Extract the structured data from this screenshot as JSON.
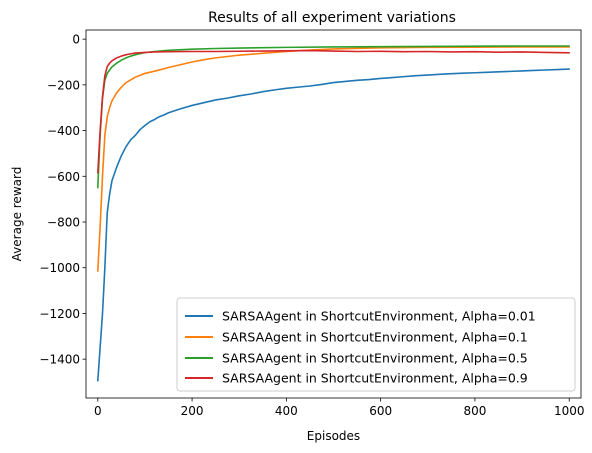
{
  "chart_data": {
    "type": "line",
    "title": "Results of all experiment variations",
    "xlabel": "Episodes",
    "ylabel": "Average reward",
    "xlim": [
      -25,
      1025
    ],
    "ylim": [
      -1570,
      40
    ],
    "xticks": [
      0,
      200,
      400,
      600,
      800,
      1000
    ],
    "yticks": [
      0,
      -200,
      -400,
      -600,
      -800,
      -1000,
      -1200,
      -1400
    ],
    "xtick_labels": [
      "0",
      "200",
      "400",
      "600",
      "800",
      "1000"
    ],
    "ytick_labels": [
      "0",
      "−200",
      "−400",
      "−600",
      "−800",
      "−1000",
      "−1200",
      "−1400"
    ],
    "grid": false,
    "legend_position": "lower right",
    "series": [
      {
        "name": "SARSAAgent in ShortcutEnvironment, Alpha=0.01",
        "color": "#1f77b4",
        "x": [
          0,
          10,
          15,
          20,
          25,
          30,
          40,
          50,
          60,
          70,
          80,
          90,
          100,
          110,
          120,
          130,
          140,
          150,
          175,
          200,
          225,
          250,
          275,
          300,
          325,
          350,
          375,
          400,
          425,
          450,
          475,
          500,
          525,
          550,
          575,
          600,
          625,
          650,
          675,
          700,
          725,
          750,
          775,
          800,
          825,
          850,
          875,
          900,
          925,
          950,
          975,
          1000
        ],
        "y": [
          -1495,
          -1200,
          -1000,
          -760,
          -680,
          -620,
          -560,
          -510,
          -470,
          -440,
          -420,
          -395,
          -378,
          -362,
          -352,
          -340,
          -332,
          -322,
          -305,
          -290,
          -278,
          -266,
          -258,
          -248,
          -240,
          -230,
          -222,
          -215,
          -210,
          -205,
          -198,
          -190,
          -185,
          -180,
          -177,
          -172,
          -168,
          -164,
          -160,
          -157,
          -154,
          -151,
          -149,
          -147,
          -145,
          -143,
          -141,
          -139,
          -137,
          -135,
          -133,
          -131
        ]
      },
      {
        "name": "SARSAAgent in ShortcutEnvironment, Alpha=0.1",
        "color": "#ff7f0e",
        "x": [
          0,
          5,
          10,
          15,
          20,
          25,
          30,
          40,
          50,
          60,
          70,
          80,
          90,
          100,
          125,
          150,
          175,
          200,
          225,
          250,
          275,
          300,
          350,
          400,
          450,
          500,
          600,
          700,
          800,
          900,
          1000
        ],
        "y": [
          -1015,
          -820,
          -600,
          -420,
          -340,
          -300,
          -270,
          -235,
          -210,
          -190,
          -178,
          -166,
          -158,
          -150,
          -138,
          -124,
          -112,
          -100,
          -90,
          -82,
          -76,
          -70,
          -62,
          -54,
          -48,
          -43,
          -38,
          -36,
          -35,
          -34,
          -34
        ]
      },
      {
        "name": "SARSAAgent in ShortcutEnvironment, Alpha=0.5",
        "color": "#2ca02c",
        "x": [
          0,
          5,
          10,
          15,
          20,
          25,
          30,
          40,
          50,
          60,
          70,
          80,
          90,
          100,
          120,
          150,
          200,
          250,
          300,
          400,
          500,
          600,
          700,
          800,
          900,
          1000
        ],
        "y": [
          -650,
          -420,
          -260,
          -180,
          -150,
          -135,
          -122,
          -105,
          -92,
          -82,
          -74,
          -68,
          -63,
          -59,
          -54,
          -49,
          -44,
          -41,
          -39,
          -36,
          -34,
          -33,
          -32,
          -31,
          -30,
          -30
        ]
      },
      {
        "name": "SARSAAgent in ShortcutEnvironment, Alpha=0.9",
        "color": "#d62728",
        "x": [
          0,
          5,
          10,
          15,
          20,
          25,
          30,
          40,
          50,
          60,
          70,
          80,
          100,
          120,
          150,
          200,
          250,
          300,
          350,
          400,
          450,
          500,
          550,
          600,
          650,
          700,
          750,
          800,
          850,
          900,
          950,
          1000
        ],
        "y": [
          -585,
          -400,
          -250,
          -160,
          -120,
          -105,
          -95,
          -82,
          -74,
          -68,
          -64,
          -61,
          -58,
          -56,
          -55,
          -54,
          -54,
          -53,
          -52,
          -51,
          -50,
          -52,
          -54,
          -53,
          -55,
          -54,
          -56,
          -55,
          -57,
          -56,
          -58,
          -60
        ]
      }
    ]
  }
}
